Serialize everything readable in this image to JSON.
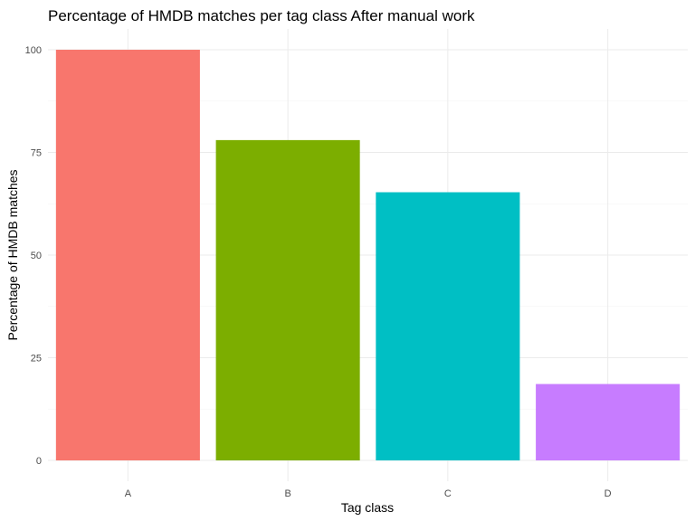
{
  "chart_data": {
    "type": "bar",
    "title": "Percentage of HMDB matches per tag class After manual work",
    "xlabel": "Tag class",
    "ylabel": "Percentage of HMDB matches",
    "categories": [
      "A",
      "B",
      "C",
      "D"
    ],
    "values": [
      100,
      78,
      65.3,
      18.6
    ],
    "colors": [
      "#F8766D",
      "#7CAE00",
      "#00BFC4",
      "#C77CFF"
    ],
    "ylim": [
      0,
      100
    ],
    "yticks": [
      0,
      25,
      50,
      75,
      100
    ],
    "grid": true,
    "legend": "none"
  }
}
